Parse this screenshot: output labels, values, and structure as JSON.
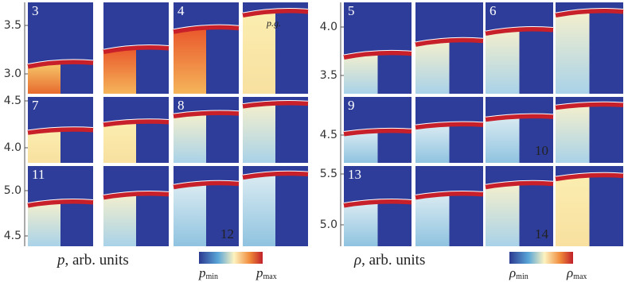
{
  "left": {
    "rows": [
      {
        "yticks": [
          "3.5",
          "3.0"
        ],
        "top_labels": [
          "3",
          "4"
        ],
        "annotation": "p.g."
      },
      {
        "yticks": [
          "4.5",
          "4.0"
        ],
        "top_labels": [
          "7",
          "8"
        ]
      },
      {
        "yticks": [
          "5.0",
          "4.5"
        ],
        "top_labels": [
          "11"
        ],
        "bottom_label": "12"
      }
    ],
    "xlabel": {
      "symbol": "p",
      "text": ", arb. units"
    },
    "colorbar": {
      "min": {
        "symbol": "p",
        "sub": "min"
      },
      "max": {
        "symbol": "p",
        "sub": "max"
      }
    }
  },
  "right": {
    "rows": [
      {
        "yticks": [
          "4.0",
          "3.5"
        ],
        "top_labels": [
          "5",
          "6"
        ]
      },
      {
        "yticks": [
          "4.5"
        ],
        "top_labels": [
          "9"
        ],
        "bottom_label": "10"
      },
      {
        "yticks": [
          "5.5",
          "5.0"
        ],
        "top_labels": [
          "13"
        ],
        "bottom_label": "14"
      }
    ],
    "xlabel": {
      "symbol": "ρ",
      "text": ", arb. units"
    },
    "colorbar": {
      "min": {
        "symbol": "ρ",
        "sub": "min"
      },
      "max": {
        "symbol": "ρ",
        "sub": "max"
      }
    }
  }
}
